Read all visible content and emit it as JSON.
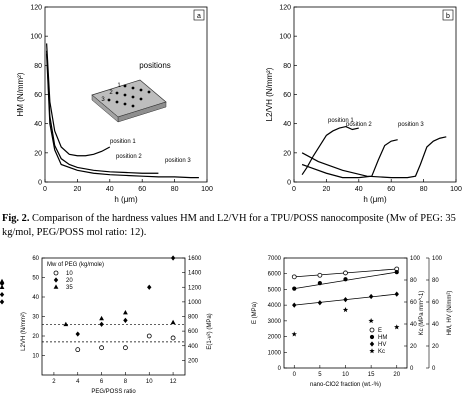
{
  "caption": {
    "label": "Fig. 2.",
    "text": "Comparison of the hardness values HM and L2/VH for a TPU/POSS nanocomposite (Mw of PEG: 35 kg/mol, PEG/POSS mol ratio: 12)."
  },
  "chart_data": [
    {
      "type": "line",
      "panel_label": "a",
      "xlabel": "h (μm)",
      "ylabel": "HM (N/mm²)",
      "xlim": [
        0,
        100
      ],
      "ylim": [
        0,
        120
      ],
      "xticks": [
        "0",
        "20",
        "40",
        "60",
        "80",
        "100"
      ],
      "yticks": [
        "0",
        "20",
        "40",
        "60",
        "80",
        "100",
        "120"
      ],
      "inset_title": "positions",
      "inset_labels": [
        "1",
        "2",
        "3"
      ],
      "series": [
        {
          "name": "position 1",
          "x": [
            1,
            3,
            6,
            10,
            15,
            20,
            25,
            30,
            35,
            40
          ],
          "values": [
            95,
            55,
            35,
            24,
            19,
            18,
            18,
            19,
            21,
            24
          ]
        },
        {
          "name": "position 2",
          "x": [
            1,
            3,
            6,
            10,
            15,
            20,
            30,
            40,
            50,
            60,
            70
          ],
          "values": [
            90,
            45,
            25,
            16,
            12,
            10,
            8,
            7,
            6.5,
            6,
            6
          ]
        },
        {
          "name": "position 3",
          "x": [
            1,
            3,
            6,
            10,
            20,
            30,
            40,
            50,
            60,
            70,
            80,
            90,
            95
          ],
          "values": [
            88,
            40,
            22,
            12,
            8,
            6,
            5,
            4.5,
            4,
            3.5,
            3.5,
            3,
            3
          ]
        }
      ],
      "annotations": [
        "position 1",
        "position 2",
        "position 3"
      ]
    },
    {
      "type": "line",
      "panel_label": "b",
      "xlabel": "h (μm)",
      "ylabel": "L2/VH (N/mm²)",
      "xlim": [
        0,
        100
      ],
      "ylim": [
        0,
        120
      ],
      "xticks": [
        "0",
        "20",
        "40",
        "60",
        "80",
        "100"
      ],
      "yticks": [
        "0",
        "20",
        "40",
        "60",
        "80",
        "100",
        "120"
      ],
      "series": [
        {
          "name": "position 1",
          "x": [
            5,
            8,
            12,
            16,
            20,
            24,
            28,
            32,
            36,
            40
          ],
          "values": [
            5,
            10,
            18,
            25,
            32,
            35,
            37,
            38,
            36,
            37
          ]
        },
        {
          "name": "position 2",
          "x": [
            5,
            10,
            20,
            30,
            40,
            48,
            52,
            56,
            60,
            64
          ],
          "values": [
            12,
            10,
            6,
            3,
            3,
            4,
            15,
            25,
            28,
            29
          ]
        },
        {
          "name": "position 3",
          "x": [
            5,
            15,
            30,
            45,
            60,
            70,
            75,
            78,
            82,
            86,
            90,
            94
          ],
          "values": [
            20,
            14,
            8,
            4,
            3,
            3,
            4,
            12,
            24,
            28,
            30,
            31
          ]
        }
      ],
      "annotations": [
        "position 1",
        "position 2",
        "position 3"
      ]
    },
    {
      "type": "scatter",
      "xlabel": "PEG/POSS ratio",
      "ylabel_left": "L2VH (N/mm²)",
      "ylabel_right": "E(1-ν²) (MPa)",
      "legend_title": "Mw of PEG (kg/mole)",
      "legend": [
        "10",
        "20",
        "35"
      ],
      "xlim": [
        1,
        13
      ],
      "xticks": [
        "2",
        "4",
        "6",
        "8",
        "10",
        "12"
      ],
      "ylim_left": [
        0,
        60
      ],
      "yticks_left": [
        "10",
        "20",
        "30",
        "40",
        "50",
        "60"
      ],
      "ylim_right": [
        0,
        1600
      ],
      "yticks_right": [
        "200",
        "400",
        "600",
        "800",
        "1000",
        "1200",
        "1400",
        "1600"
      ],
      "hlines_left": [
        26,
        17
      ],
      "left_markers_left": [
        48,
        45
      ],
      "left_markers_right": [
        1000,
        1100,
        1250
      ],
      "series": [
        {
          "name": "10",
          "x": [
            4,
            6,
            8,
            10,
            12
          ],
          "values": [
            13,
            14,
            14,
            20,
            19
          ]
        },
        {
          "name": "20",
          "x": [
            4,
            6,
            8,
            10,
            12
          ],
          "values": [
            21,
            26,
            28,
            45,
            60
          ]
        },
        {
          "name": "35",
          "x": [
            3,
            6,
            8,
            12
          ],
          "values": [
            26,
            29,
            32,
            27
          ]
        }
      ]
    },
    {
      "type": "scatter",
      "xlabel": "nano-ClO2 fraction (wt.-%)",
      "ylabel_left": "E (MPa)",
      "ylabel_right_1": "Kc (MPa mm^-1)",
      "ylabel_right_2": "HM, HV (N/mm²)",
      "xlim": [
        -2,
        22
      ],
      "xticks": [
        "0",
        "5",
        "10",
        "15",
        "20"
      ],
      "ylim_left": [
        0,
        7000
      ],
      "yticks_left": [
        "0",
        "1000",
        "2000",
        "3000",
        "4000",
        "5000",
        "6000",
        "7000"
      ],
      "ylim_right": [
        0,
        100
      ],
      "yticks_right": [
        "0",
        "20",
        "40",
        "60",
        "80",
        "100"
      ],
      "legend": [
        "E",
        "HM",
        "HV",
        "Kc"
      ],
      "series": [
        {
          "name": "E",
          "x": [
            0,
            5,
            10,
            20
          ],
          "values": [
            5800,
            5900,
            6050,
            6300
          ]
        },
        {
          "name": "HM",
          "x": [
            0,
            5,
            10,
            20
          ],
          "values": [
            5050,
            5400,
            5650,
            6100
          ]
        },
        {
          "name": "HV",
          "x": [
            0,
            5,
            10,
            15,
            20
          ],
          "values": [
            4000,
            4150,
            4350,
            4550,
            4700
          ]
        },
        {
          "name": "Kc",
          "x": [
            0,
            10,
            15,
            20
          ],
          "values": [
            2150,
            3700,
            3000,
            2600
          ]
        }
      ]
    }
  ]
}
